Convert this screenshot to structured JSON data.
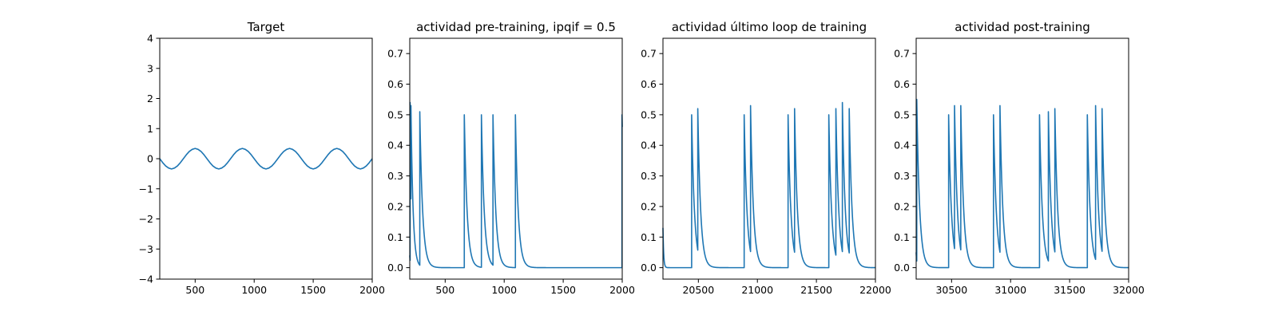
{
  "chart_data": [
    {
      "type": "line",
      "title": "Target",
      "xlim": [
        200,
        2000
      ],
      "ylim": [
        -4,
        4
      ],
      "xticks": [
        500,
        1000,
        1500,
        2000
      ],
      "yticks": [
        -4,
        -3,
        -2,
        -1,
        0,
        1,
        2,
        3,
        4
      ],
      "xtick_labels": [
        "500",
        "1000",
        "1500",
        "2000"
      ],
      "ytick_labels": [
        "−4",
        "−3",
        "−2",
        "−1",
        "0",
        "1",
        "2",
        "3",
        "4"
      ],
      "grid": false,
      "color": "#1f77b4",
      "series": [
        {
          "x": [
            200,
            225,
            250,
            275,
            300,
            325,
            350,
            375,
            400,
            425,
            450,
            475,
            500,
            525,
            550,
            575,
            600,
            625,
            650,
            675,
            700,
            725,
            750,
            775,
            800,
            825,
            850,
            875,
            900,
            925,
            950,
            975,
            1000,
            1025,
            1050,
            1075,
            1100,
            1125,
            1150,
            1175,
            1200,
            1225,
            1250,
            1275,
            1300,
            1325,
            1350,
            1375,
            1400,
            1425,
            1450,
            1475,
            1500,
            1525,
            1550,
            1575,
            1600,
            1625,
            1650,
            1675,
            1700,
            1725,
            1750,
            1775,
            1800,
            1825,
            1850,
            1875,
            1900,
            1925,
            1950,
            1975,
            2000
          ],
          "y": [
            0.0,
            -0.13,
            -0.24,
            -0.31,
            -0.34,
            -0.31,
            -0.24,
            -0.13,
            0.0,
            0.13,
            0.24,
            0.31,
            0.34,
            0.31,
            0.24,
            0.13,
            0.0,
            -0.13,
            -0.24,
            -0.31,
            -0.34,
            -0.31,
            -0.24,
            -0.13,
            0.0,
            0.13,
            0.24,
            0.31,
            0.34,
            0.31,
            0.24,
            0.13,
            0.0,
            -0.13,
            -0.24,
            -0.31,
            -0.34,
            -0.31,
            -0.24,
            -0.13,
            0.0,
            0.13,
            0.24,
            0.31,
            0.34,
            0.31,
            0.24,
            0.13,
            0.0,
            -0.13,
            -0.24,
            -0.31,
            -0.34,
            -0.31,
            -0.24,
            -0.13,
            0.0,
            0.13,
            0.24,
            0.31,
            0.34,
            0.31,
            0.24,
            0.13,
            0.0,
            -0.13,
            -0.24,
            -0.31,
            -0.34,
            -0.31,
            -0.24,
            -0.13,
            0.0
          ]
        }
      ]
    },
    {
      "type": "line",
      "title": "actividad pre-training, ipqif = 0.5",
      "xlim": [
        200,
        2000
      ],
      "ylim": [
        -0.0375,
        0.75
      ],
      "xticks": [
        500,
        1000,
        1500,
        2000
      ],
      "yticks": [
        0.0,
        0.1,
        0.2,
        0.3,
        0.4,
        0.5,
        0.6,
        0.7
      ],
      "xtick_labels": [
        "500",
        "1000",
        "1500",
        "2000"
      ],
      "ytick_labels": [
        "0.0",
        "0.1",
        "0.2",
        "0.3",
        "0.4",
        "0.5",
        "0.6",
        "0.7"
      ],
      "grid": false,
      "color": "#1f77b4",
      "series": [
        {
          "start_y": 0.04,
          "baseline": 0.0,
          "spikes": [
            {
              "t": 203,
              "peak": 0.54,
              "decay": 8
            },
            {
              "t": 210,
              "peak": 0.53,
              "decay": 18
            },
            {
              "t": 285,
              "peak": 0.51,
              "decay": 24
            },
            {
              "t": 662,
              "peak": 0.5,
              "decay": 24
            },
            {
              "t": 807,
              "peak": 0.5,
              "decay": 24
            },
            {
              "t": 905,
              "peak": 0.5,
              "decay": 24
            },
            {
              "t": 1095,
              "peak": 0.5,
              "decay": 24
            },
            {
              "t": 1998,
              "peak": 0.5,
              "decay": 24
            }
          ]
        }
      ]
    },
    {
      "type": "line",
      "title": "actividad último loop de training",
      "xlim": [
        20200,
        22000
      ],
      "ylim": [
        -0.0375,
        0.75
      ],
      "xticks": [
        20500,
        21000,
        21500,
        22000
      ],
      "yticks": [
        0.0,
        0.1,
        0.2,
        0.3,
        0.4,
        0.5,
        0.6,
        0.7
      ],
      "xtick_labels": [
        "20500",
        "21000",
        "21500",
        "22000"
      ],
      "ytick_labels": [
        "0.0",
        "0.1",
        "0.2",
        "0.3",
        "0.4",
        "0.5",
        "0.6",
        "0.7"
      ],
      "grid": false,
      "color": "#1f77b4",
      "series": [
        {
          "start_y": 0.13,
          "baseline": 0.0,
          "spikes": [
            {
              "t": 20443,
              "peak": 0.5,
              "decay": 24
            },
            {
              "t": 20495,
              "peak": 0.52,
              "decay": 24
            },
            {
              "t": 20888,
              "peak": 0.5,
              "decay": 24
            },
            {
              "t": 20942,
              "peak": 0.53,
              "decay": 24
            },
            {
              "t": 21260,
              "peak": 0.5,
              "decay": 24
            },
            {
              "t": 21315,
              "peak": 0.52,
              "decay": 24
            },
            {
              "t": 21605,
              "peak": 0.5,
              "decay": 24
            },
            {
              "t": 21665,
              "peak": 0.52,
              "decay": 24
            },
            {
              "t": 21720,
              "peak": 0.54,
              "decay": 24
            },
            {
              "t": 21778,
              "peak": 0.52,
              "decay": 24
            }
          ]
        }
      ]
    },
    {
      "type": "line",
      "title": "actividad post-training",
      "xlim": [
        30200,
        32000
      ],
      "ylim": [
        -0.0375,
        0.75
      ],
      "xticks": [
        30500,
        31000,
        31500,
        32000
      ],
      "yticks": [
        0.0,
        0.1,
        0.2,
        0.3,
        0.4,
        0.5,
        0.6,
        0.7
      ],
      "xtick_labels": [
        "30500",
        "31000",
        "31500",
        "32000"
      ],
      "ytick_labels": [
        "0.0",
        "0.1",
        "0.2",
        "0.3",
        "0.4",
        "0.5",
        "0.6",
        "0.7"
      ],
      "grid": false,
      "color": "#1f77b4",
      "series": [
        {
          "start_y": 0.05,
          "baseline": 0.0,
          "spikes": [
            {
              "t": 30205,
              "peak": 0.55,
              "decay": 24
            },
            {
              "t": 30475,
              "peak": 0.5,
              "decay": 24
            },
            {
              "t": 30525,
              "peak": 0.53,
              "decay": 24
            },
            {
              "t": 30578,
              "peak": 0.53,
              "decay": 24
            },
            {
              "t": 30855,
              "peak": 0.5,
              "decay": 24
            },
            {
              "t": 30910,
              "peak": 0.53,
              "decay": 24
            },
            {
              "t": 31245,
              "peak": 0.5,
              "decay": 24
            },
            {
              "t": 31320,
              "peak": 0.51,
              "decay": 24
            },
            {
              "t": 31375,
              "peak": 0.52,
              "decay": 24
            },
            {
              "t": 31650,
              "peak": 0.5,
              "decay": 24
            },
            {
              "t": 31720,
              "peak": 0.53,
              "decay": 24
            },
            {
              "t": 31775,
              "peak": 0.52,
              "decay": 24
            }
          ]
        }
      ]
    }
  ]
}
